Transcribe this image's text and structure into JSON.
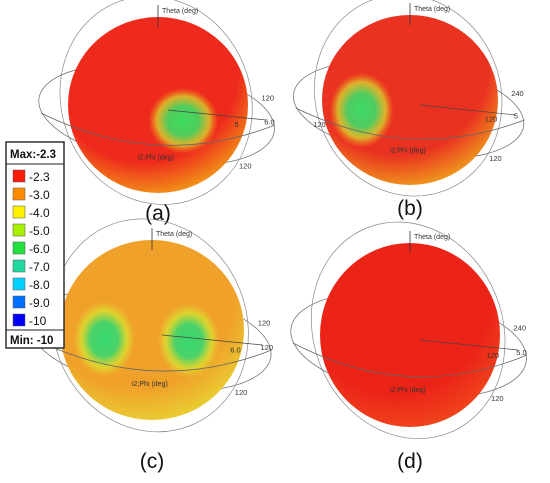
{
  "panels": [
    {
      "id": "a",
      "caption": "(a)",
      "axis_title": "Theta (deg)",
      "phi_label": "Phi (deg)",
      "phi_prefix": "i2;",
      "ticks": [
        "120",
        "5",
        "6.0",
        "120"
      ],
      "nulls": [
        {
          "side": "right-front"
        }
      ],
      "colors": {
        "main": "#ee2a1c",
        "mid": "#f2a418",
        "null": "#3fdd62"
      }
    },
    {
      "id": "b",
      "caption": "(b)",
      "axis_title": "Theta (deg)",
      "phi_label": "Phi (deg)",
      "phi_prefix": "i2;",
      "ticks": [
        "240",
        "120",
        "5",
        "120",
        "120"
      ],
      "nulls": [
        {
          "side": "left-front"
        }
      ],
      "colors": {
        "main": "#ea3220",
        "mid": "#efa81c",
        "null": "#3fdc68"
      }
    },
    {
      "id": "c",
      "caption": "(c)",
      "axis_title": "Theta (deg)",
      "phi_label": "Phi (deg)",
      "phi_prefix": "i2;",
      "ticks": [
        "120",
        "6.0",
        "120",
        "120"
      ],
      "nulls": [
        {
          "side": "left"
        },
        {
          "side": "right"
        }
      ],
      "colors": {
        "main": "#f0a12a",
        "mid": "#e8d433",
        "null": "#38d870"
      }
    },
    {
      "id": "d",
      "caption": "(d)",
      "axis_title": "Theta (deg)",
      "phi_label": "Phi (deg)",
      "phi_prefix": "i2;",
      "ticks": [
        "240",
        "120",
        "5.0",
        "120"
      ],
      "nulls": [],
      "colors": {
        "main": "#ec2418",
        "mid": "#f04a1c",
        "null": "#f04a1c"
      }
    }
  ],
  "legend": {
    "max_label": "Max:-2.3",
    "min_label": "Min: -10",
    "entries": [
      {
        "value": "-2.3",
        "color": "#ff1a0a"
      },
      {
        "value": "-3.0",
        "color": "#ff8c00"
      },
      {
        "value": "-4.0",
        "color": "#fff000"
      },
      {
        "value": "-5.0",
        "color": "#a8f000"
      },
      {
        "value": "-6.0",
        "color": "#20e040"
      },
      {
        "value": "-7.0",
        "color": "#20d8a0"
      },
      {
        "value": "-8.0",
        "color": "#00d0ff"
      },
      {
        "value": "-9.0",
        "color": "#0070ff"
      },
      {
        "value": "-10",
        "color": "#0000ff"
      }
    ]
  }
}
